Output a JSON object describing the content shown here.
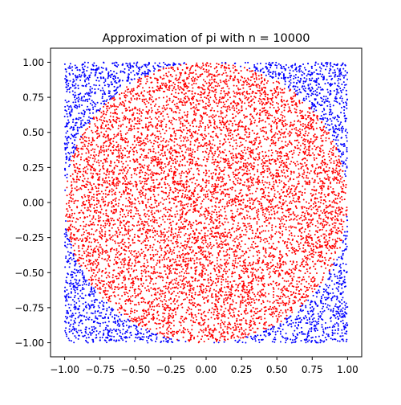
{
  "chart_data": {
    "type": "scatter",
    "title": "Approximation of pi with n = 10000",
    "xlabel": "",
    "ylabel": "",
    "xlim": [
      -1.1,
      1.1
    ],
    "ylim": [
      -1.1,
      1.1
    ],
    "xticks": [
      -1.0,
      -0.75,
      -0.5,
      -0.25,
      0.0,
      0.25,
      0.5,
      0.75,
      1.0
    ],
    "yticks": [
      -1.0,
      -0.75,
      -0.5,
      -0.25,
      0.0,
      0.25,
      0.5,
      0.75,
      1.0
    ],
    "x_tick_labels": [
      "−1.00",
      "−0.75",
      "−0.50",
      "−0.25",
      "0.00",
      "0.25",
      "0.50",
      "0.75",
      "1.00"
    ],
    "y_tick_labels": [
      "−1.00",
      "−0.75",
      "−0.50",
      "−0.25",
      "0.00",
      "0.25",
      "0.50",
      "0.75",
      "1.00"
    ],
    "grid": false,
    "aspect": "equal",
    "n_points": 10000,
    "inside_color": "#ff0000",
    "outside_color": "#0000ff",
    "series": [
      {
        "color": "#ff0000",
        "region": "x² + y² ≤ 1",
        "sample_points": [
          [
            0.0,
            0.0
          ],
          [
            0.25,
            0.18
          ],
          [
            -0.42,
            0.55
          ],
          [
            0.61,
            -0.33
          ],
          [
            -0.7,
            -0.5
          ],
          [
            0.1,
            0.92
          ],
          [
            -0.95,
            0.05
          ],
          [
            0.88,
            0.4
          ],
          [
            -0.2,
            -0.9
          ],
          [
            0.5,
            0.5
          ]
        ]
      },
      {
        "color": "#0000ff",
        "region": "x² + y² > 1",
        "sample_points": [
          [
            0.95,
            0.9
          ],
          [
            -0.92,
            0.88
          ],
          [
            -0.9,
            -0.93
          ],
          [
            0.93,
            -0.95
          ],
          [
            0.8,
            0.75
          ],
          [
            -0.78,
            0.8
          ],
          [
            -0.8,
            -0.72
          ],
          [
            0.75,
            -0.8
          ]
        ]
      }
    ]
  }
}
